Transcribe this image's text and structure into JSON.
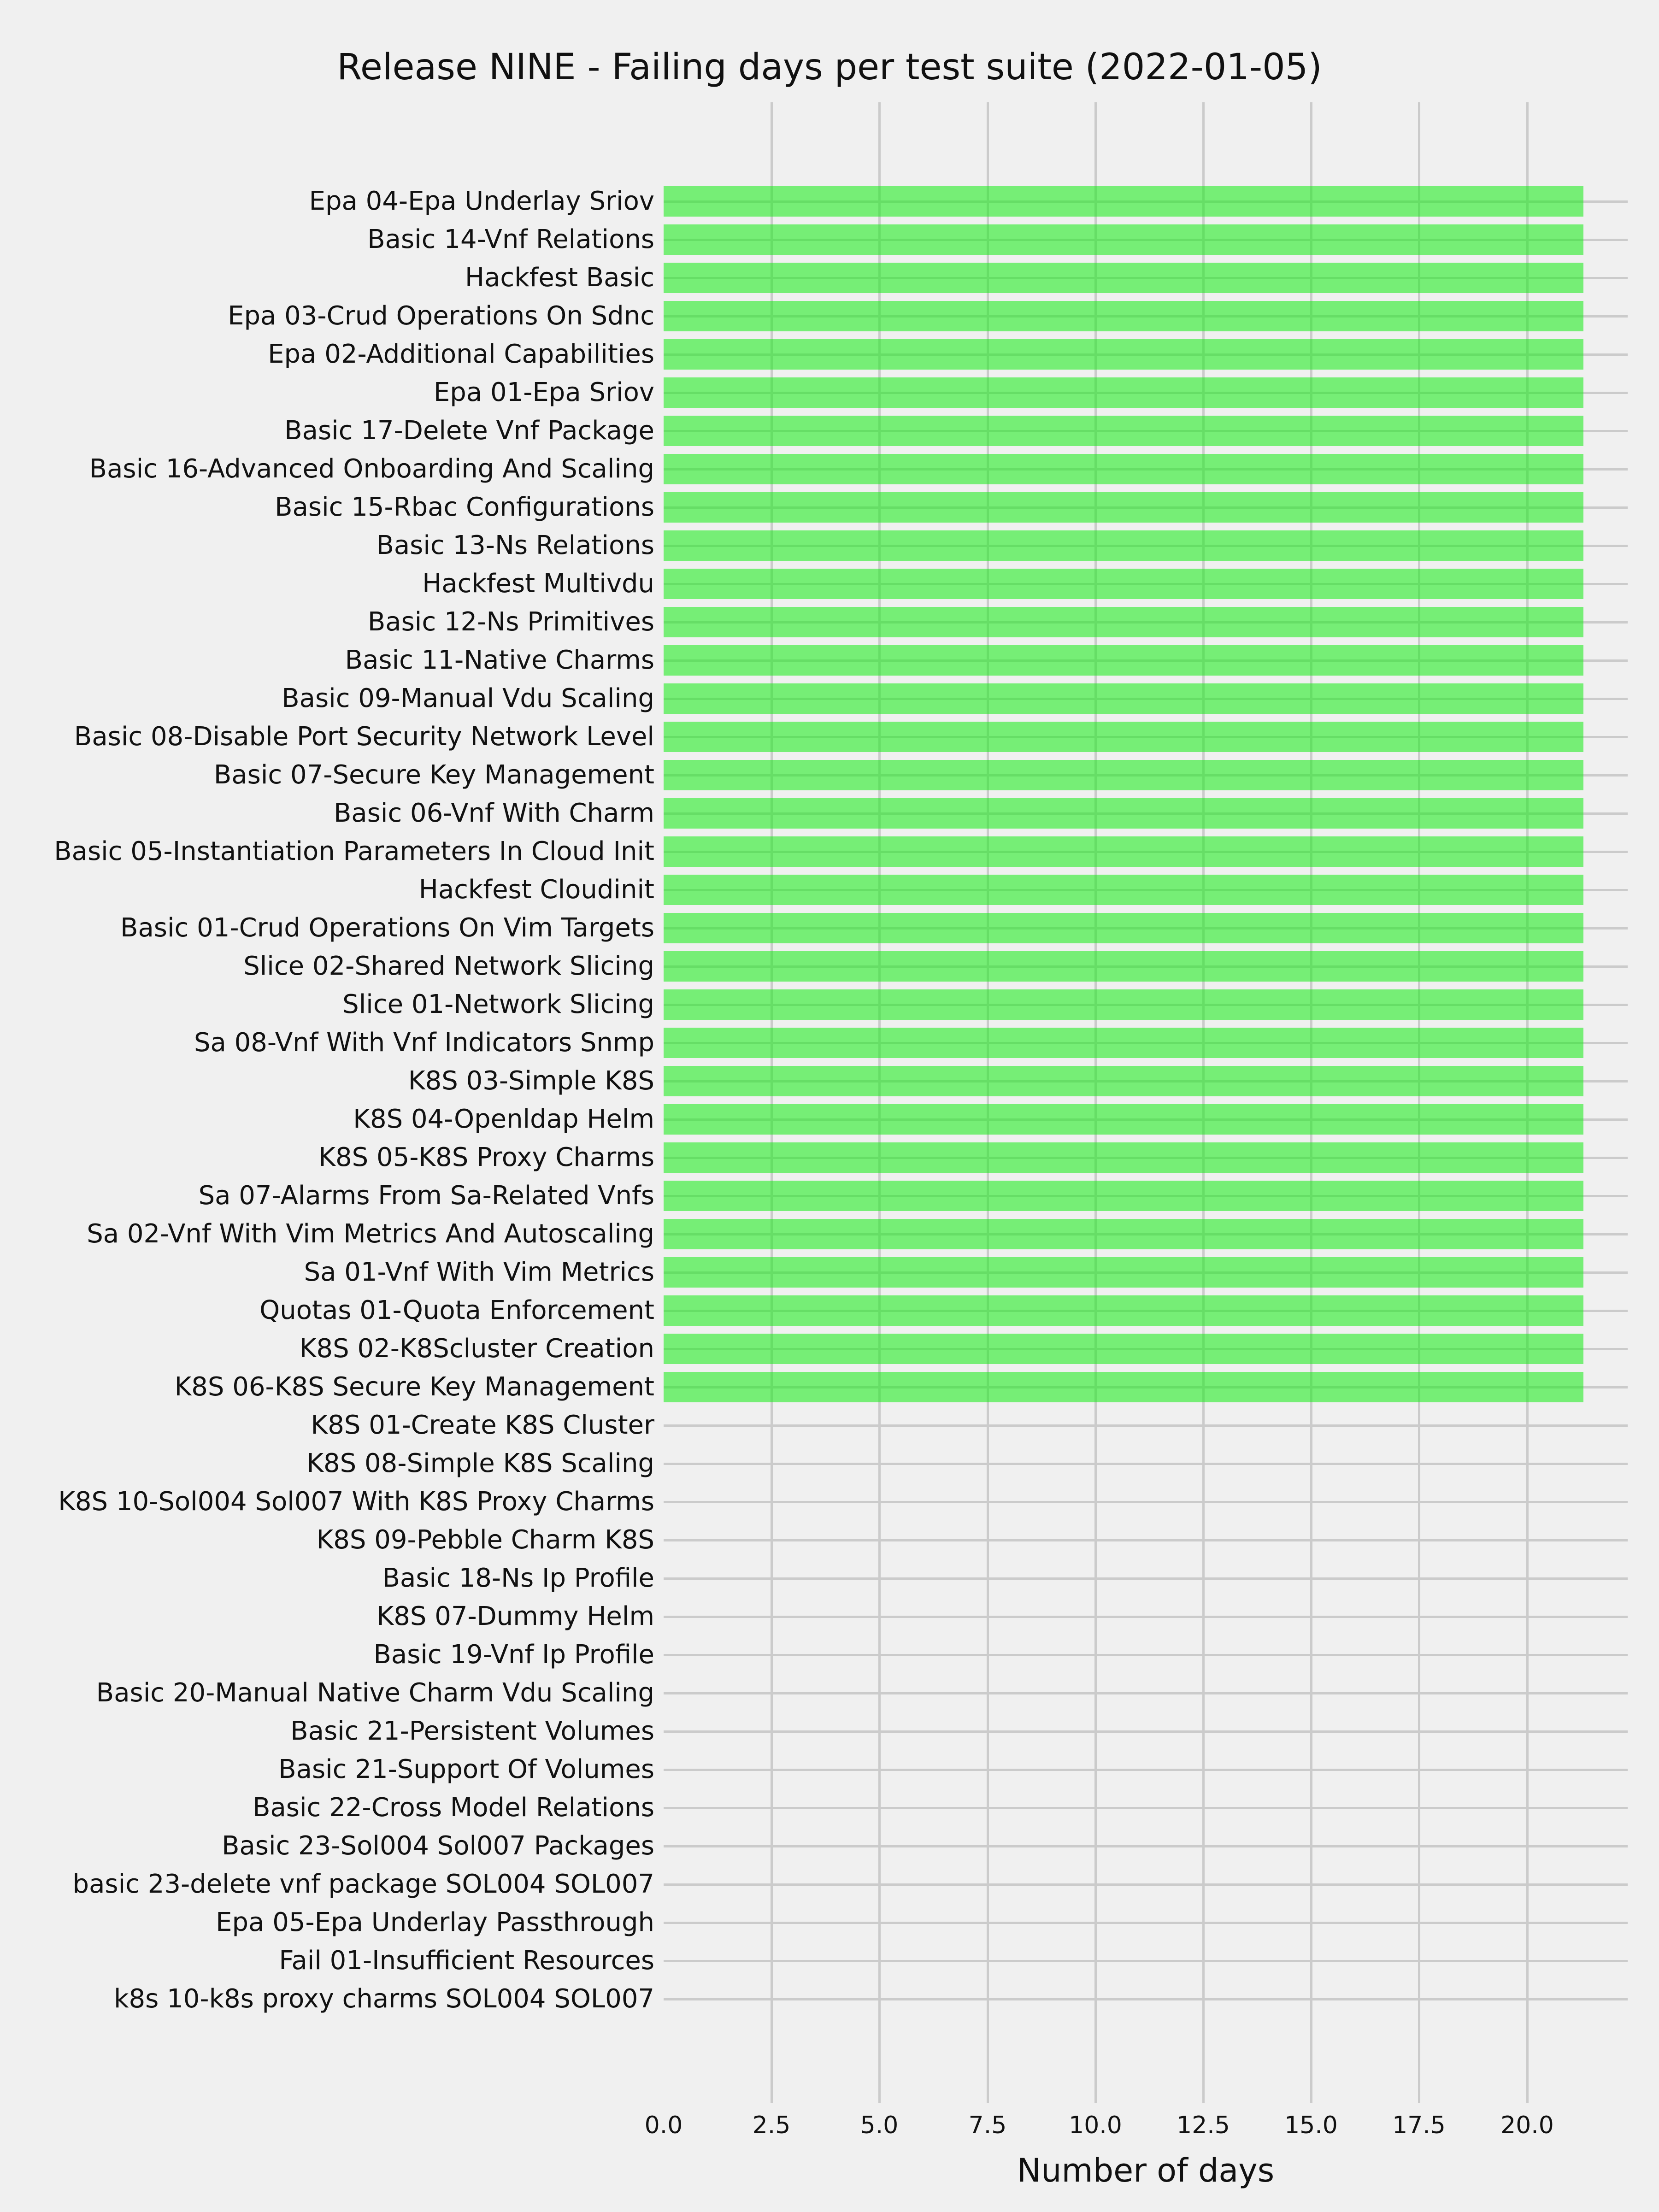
{
  "title": "Release NINE - Failing days per test suite (2022-01-05)",
  "colors": {
    "background": "#F0F0F0",
    "grid": "#CBCBCB",
    "bar_green": "#73F273",
    "bar_green_on_grid": "#67DD67",
    "text": "#111111"
  },
  "chart_data": {
    "type": "bar",
    "orientation": "horizontal",
    "title": "Release NINE - Failing days per test suite (2022-01-05)",
    "xlabel": "Number of days",
    "ylabel": "",
    "xlim": [
      0,
      22.33
    ],
    "xticks": [
      0,
      2.5,
      5,
      7.5,
      10,
      12.5,
      15,
      17.5,
      20
    ],
    "xtick_labels": [
      "0.0",
      "2.5",
      "5.0",
      "7.5",
      "10.0",
      "12.5",
      "15.0",
      "17.5",
      "20.0"
    ],
    "grid": true,
    "legend_position": "none",
    "categories": [
      "Epa 04-Epa Underlay Sriov",
      "Basic 14-Vnf Relations",
      "Hackfest Basic",
      "Epa 03-Crud Operations On Sdnc",
      "Epa 02-Additional Capabilities",
      "Epa 01-Epa Sriov",
      "Basic 17-Delete Vnf Package",
      "Basic 16-Advanced Onboarding And Scaling",
      "Basic 15-Rbac Configurations",
      "Basic 13-Ns Relations",
      "Hackfest Multivdu",
      "Basic 12-Ns Primitives",
      "Basic 11-Native Charms",
      "Basic 09-Manual Vdu Scaling",
      "Basic 08-Disable Port Security Network Level",
      "Basic 07-Secure Key Management",
      "Basic 06-Vnf With Charm",
      "Basic 05-Instantiation Parameters In Cloud Init",
      "Hackfest Cloudinit",
      "Basic 01-Crud Operations On Vim Targets",
      "Slice 02-Shared Network Slicing",
      "Slice 01-Network Slicing",
      "Sa 08-Vnf With Vnf Indicators Snmp",
      "K8S 03-Simple K8S",
      "K8S 04-Openldap Helm",
      "K8S 05-K8S Proxy Charms",
      "Sa 07-Alarms From Sa-Related Vnfs",
      "Sa 02-Vnf With Vim Metrics And Autoscaling",
      "Sa 01-Vnf With Vim Metrics",
      "Quotas 01-Quota Enforcement",
      "K8S 02-K8Scluster Creation",
      "K8S 06-K8S Secure Key Management",
      "K8S 01-Create K8S Cluster",
      "K8S 08-Simple K8S Scaling",
      "K8S 10-Sol004 Sol007 With K8S Proxy Charms",
      "K8S 09-Pebble Charm K8S",
      "Basic 18-Ns Ip Profile",
      "K8S 07-Dummy Helm",
      "Basic 19-Vnf Ip Profile",
      "Basic 20-Manual Native Charm Vdu Scaling",
      "Basic 21-Persistent Volumes",
      "Basic 21-Support Of Volumes",
      "Basic 22-Cross Model Relations",
      "Basic 23-Sol004 Sol007 Packages",
      "basic 23-delete vnf package SOL004 SOL007",
      "Epa 05-Epa Underlay Passthrough",
      "Fail 01-Insufficient Resources",
      "k8s 10-k8s proxy charms SOL004 SOL007"
    ],
    "values": [
      21.3,
      21.3,
      21.3,
      21.3,
      21.3,
      21.3,
      21.3,
      21.3,
      21.3,
      21.3,
      21.3,
      21.3,
      21.3,
      21.3,
      21.3,
      21.3,
      21.3,
      21.3,
      21.3,
      21.3,
      21.3,
      21.3,
      21.3,
      21.3,
      21.3,
      21.3,
      21.3,
      21.3,
      21.3,
      21.3,
      21.3,
      21.3,
      0,
      0,
      0,
      0,
      0,
      0,
      0,
      0,
      0,
      0,
      0,
      0,
      0,
      0,
      0,
      0
    ]
  }
}
